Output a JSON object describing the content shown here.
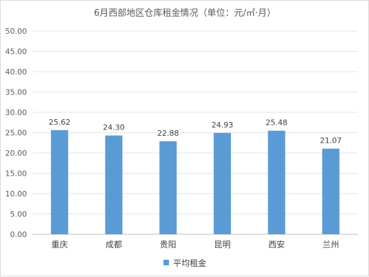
{
  "chart_data": {
    "type": "bar",
    "title": "6月西部地区仓库租金情况（单位：元/㎡·月）",
    "categories": [
      "重庆",
      "成都",
      "贵阳",
      "昆明",
      "西安",
      "兰州"
    ],
    "series": [
      {
        "name": "平均租金",
        "values": [
          25.62,
          24.3,
          22.88,
          24.93,
          25.48,
          21.07
        ],
        "color": "#5b9bd5"
      }
    ],
    "data_labels": [
      "25.62",
      "24.30",
      "22.88",
      "24.93",
      "25.48",
      "21.07"
    ],
    "y_ticks": [
      "0.00",
      "5.00",
      "10.00",
      "15.00",
      "20.00",
      "25.00",
      "30.00",
      "35.00",
      "40.00",
      "45.00",
      "50.00"
    ],
    "ylim": [
      0,
      50
    ],
    "grid": true,
    "legend_position": "bottom",
    "xlabel": "",
    "ylabel": ""
  }
}
